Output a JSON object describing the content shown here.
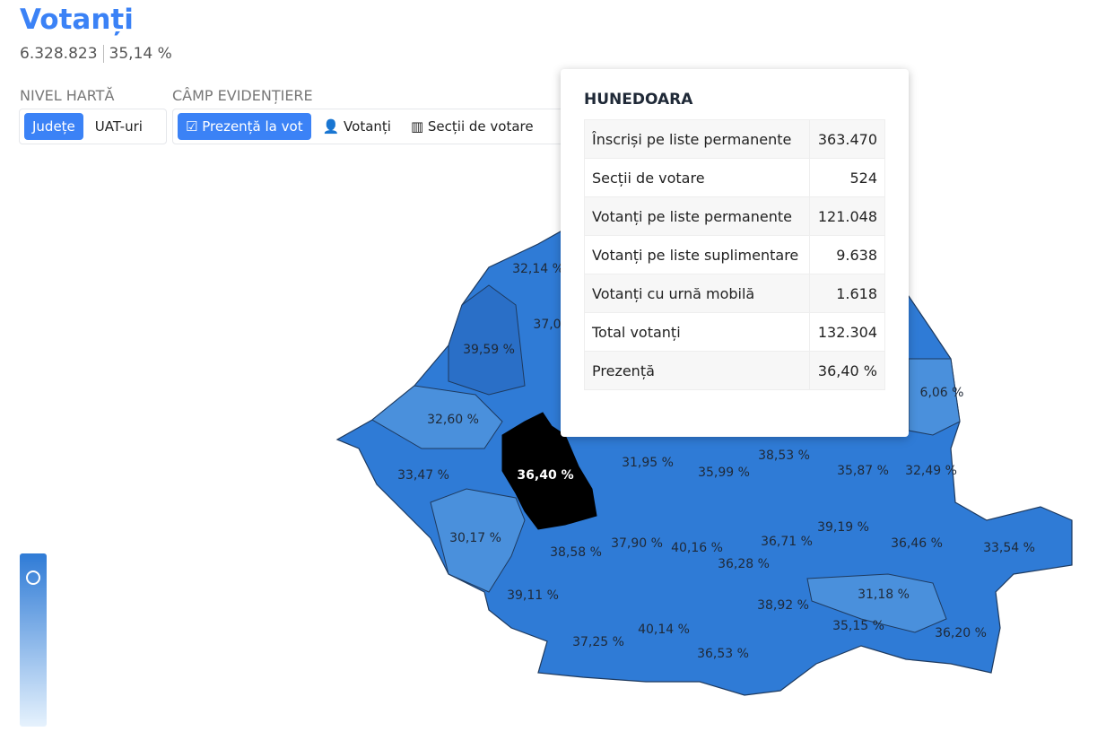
{
  "header": {
    "title": "Votanți",
    "voters": "6.328.823",
    "turnout": "35,14 %"
  },
  "controls": {
    "map_level": {
      "label": "NIVEL HARTĂ",
      "options": [
        "Județe",
        "UAT-uri"
      ]
    },
    "highlight_field": {
      "label": "CÂMP EVIDENȚIERE",
      "options": [
        "Prezență la vot",
        "Votanți",
        "Secții de votare"
      ]
    }
  },
  "map": {
    "labels": [
      "32,14 %",
      "37,0",
      "39,59 %",
      "32,60 %",
      "33,47 %",
      "36,40 %",
      "30,17 %",
      "38,58 %",
      "37,90 %",
      "40,16 %",
      "36,28 %",
      "36,71 %",
      "39,19 %",
      "36,46 %",
      "33,54 %",
      "31,95 %",
      "35,99 %",
      "38,53 %",
      "35,87 %",
      "32,49 %",
      "6,06 %",
      "39,11 %",
      "37,25 %",
      "40,14 %",
      "36,53 %",
      "38,92 %",
      "31,18 %",
      "35,15 %",
      "36,20 %"
    ]
  },
  "tooltip": {
    "title": "HUNEDOARA",
    "rows": [
      [
        "Înscriși pe liste permanente",
        "363.470"
      ],
      [
        "Secții de votare",
        "524"
      ],
      [
        "Votanți pe liste permanente",
        "121.048"
      ],
      [
        "Votanți pe liste suplimentare",
        "9.638"
      ],
      [
        "Votanți cu urnă mobilă",
        "1.618"
      ],
      [
        "Total votanți",
        "132.304"
      ],
      [
        "Prezență",
        "36,40 %"
      ]
    ]
  }
}
